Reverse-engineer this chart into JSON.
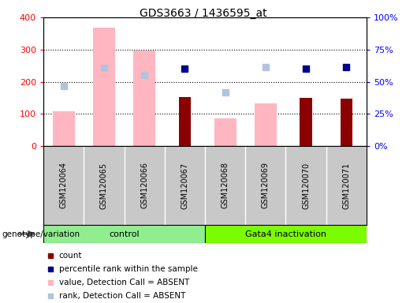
{
  "title": "GDS3663 / 1436595_at",
  "samples": [
    "GSM120064",
    "GSM120065",
    "GSM120066",
    "GSM120067",
    "GSM120068",
    "GSM120069",
    "GSM120070",
    "GSM120071"
  ],
  "count": [
    null,
    null,
    null,
    152,
    null,
    null,
    150,
    148
  ],
  "percentile_rank": [
    null,
    null,
    null,
    240,
    null,
    null,
    240,
    245
  ],
  "value_absent": [
    107,
    368,
    298,
    null,
    85,
    133,
    null,
    null
  ],
  "rank_absent": [
    186,
    242,
    222,
    null,
    168,
    246,
    null,
    null
  ],
  "left_ylim": [
    0,
    400
  ],
  "right_ylim": [
    0,
    100
  ],
  "left_yticks": [
    0,
    100,
    200,
    300,
    400
  ],
  "right_yticks": [
    0,
    25,
    50,
    75,
    100
  ],
  "right_yticklabels": [
    "0%",
    "25%",
    "50%",
    "75%",
    "100%"
  ],
  "control_color": "#90EE90",
  "gata4_color": "#7CFC00",
  "count_color": "#8B0000",
  "percentile_color": "#00008B",
  "value_absent_color": "#FFB6C1",
  "rank_absent_color": "#B0C4DE",
  "bg_color": "#C8C8C8",
  "plot_bg": "#FFFFFF",
  "genotype_label": "genotype/variation",
  "legend_items": [
    {
      "color": "#8B0000",
      "marker": "s",
      "label": "count"
    },
    {
      "color": "#00008B",
      "marker": "s",
      "label": "percentile rank within the sample"
    },
    {
      "color": "#FFB6C1",
      "marker": "s",
      "label": "value, Detection Call = ABSENT"
    },
    {
      "color": "#B0C4DE",
      "marker": "s",
      "label": "rank, Detection Call = ABSENT"
    }
  ]
}
